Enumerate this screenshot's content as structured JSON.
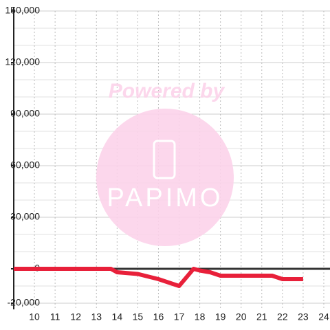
{
  "chart_data": {
    "type": "line",
    "watermark": {
      "text": "Powered by",
      "logo": "PAPIMO"
    },
    "x": [
      9,
      13.7,
      14,
      15,
      16,
      16.5,
      17,
      17.7,
      18,
      18.5,
      19,
      21.5,
      22,
      23
    ],
    "series": [
      {
        "color": "#e8203a",
        "values": [
          0,
          0,
          -2000,
          -3000,
          -6000,
          -8000,
          -10000,
          0,
          -1000,
          -2000,
          -4000,
          -4000,
          -6000,
          -6000
        ]
      }
    ],
    "xlim": [
      9,
      24.3
    ],
    "ylim": [
      -20000,
      150000
    ],
    "xticks": [
      10,
      11,
      12,
      13,
      14,
      15,
      16,
      17,
      18,
      19,
      20,
      21,
      22,
      23,
      24
    ],
    "yticks": [
      {
        "value": -20000,
        "label": "-20,000"
      },
      0,
      {
        "value": 30000,
        "label": "30,000"
      },
      {
        "value": 60000,
        "label": "60,000"
      },
      {
        "value": 90000,
        "label": "90,000"
      },
      {
        "value": 120000,
        "label": "120,000"
      },
      {
        "value": 150000,
        "label": "150,000"
      }
    ],
    "grid": true
  }
}
